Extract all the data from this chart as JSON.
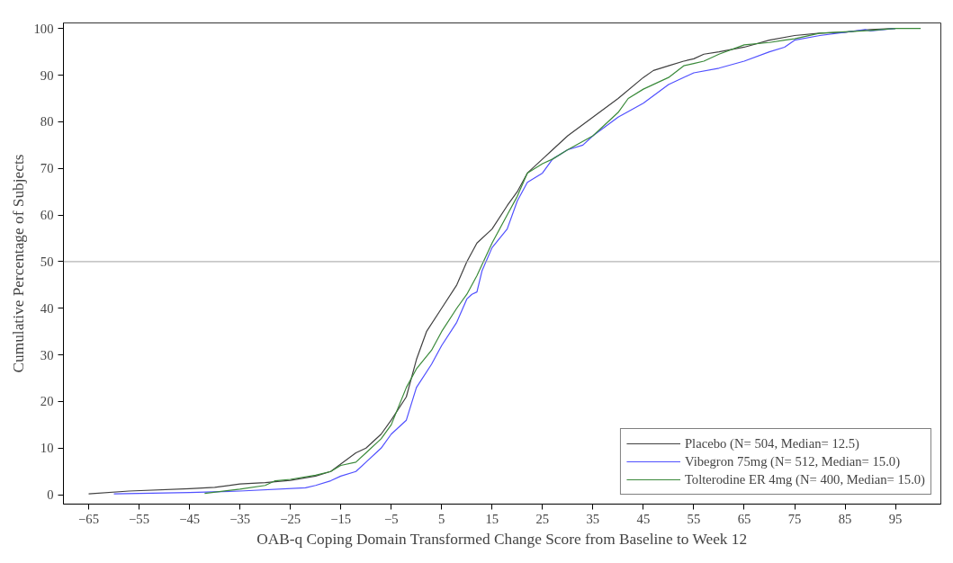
{
  "chart_data": {
    "type": "line",
    "xlabel": "OAB-q Coping Domain Transformed Change Score from Baseline to Week 12",
    "ylabel": "Cumulative Percentage of Subjects",
    "xlim": [
      -70,
      104
    ],
    "ylim": [
      -2,
      101.2
    ],
    "xticks": [
      -65,
      -55,
      -45,
      -35,
      -25,
      -15,
      -5,
      5,
      15,
      25,
      35,
      45,
      55,
      65,
      75,
      85,
      95
    ],
    "yticks": [
      0,
      10,
      20,
      30,
      40,
      50,
      60,
      70,
      80,
      90,
      100
    ],
    "grid": false,
    "legend": "bottom right",
    "line_style": "solid",
    "marker": "none",
    "ref_lines": [
      {
        "axis": "y",
        "value": 50,
        "color": "#a0a0a0"
      }
    ],
    "series": [
      {
        "name": "Placebo (N= 504, Median= 12.5)",
        "color": "#404040",
        "x": [
          -65,
          -57,
          -45,
          -40,
          -35,
          -30,
          -25,
          -20,
          -17,
          -12,
          -10,
          -7,
          -5,
          -2,
          0,
          2,
          5,
          8,
          10,
          12,
          15,
          18,
          20,
          22,
          25,
          27,
          30,
          35,
          40,
          45,
          47,
          50,
          53,
          55,
          57,
          60,
          65,
          70,
          75,
          80,
          85,
          90,
          95
        ],
        "values": [
          0.2,
          0.8,
          1.3,
          1.6,
          2.3,
          2.6,
          3.1,
          4,
          5,
          9,
          10,
          13,
          16,
          21,
          29,
          35,
          40,
          45,
          50,
          54,
          57,
          62,
          65,
          69,
          72,
          74,
          77,
          81,
          85,
          89.5,
          91,
          92,
          93,
          93.5,
          94.5,
          95,
          96,
          97.5,
          98.5,
          99,
          99.2,
          99.8,
          100
        ]
      },
      {
        "name": "Vibegron 75mg (N= 512, Median= 15.0)",
        "color": "#5050ff",
        "x": [
          -60,
          -45,
          -35,
          -22,
          -20,
          -17,
          -15,
          -12,
          -10,
          -7,
          -5,
          -2,
          0,
          3,
          5,
          8,
          10,
          11,
          12,
          13,
          15,
          18,
          20,
          22,
          25,
          27,
          30,
          33,
          35,
          40,
          45,
          50,
          55,
          60,
          65,
          70,
          73,
          75,
          80,
          85,
          89,
          90,
          95
        ],
        "values": [
          0.2,
          0.5,
          0.8,
          1.5,
          2,
          3,
          4,
          5,
          7,
          10,
          13,
          16,
          23,
          28,
          32,
          37,
          42,
          43,
          43.5,
          48,
          53,
          57,
          63,
          67,
          69,
          72,
          74,
          75,
          77,
          81,
          84,
          88,
          90.5,
          91.5,
          93,
          95,
          96,
          97.5,
          98.5,
          99.2,
          99.8,
          99.5,
          100
        ]
      },
      {
        "name": "Tolterodine ER 4mg (N= 400, Median= 15.0)",
        "color": "#3a8a3a",
        "x": [
          -42,
          -35,
          -30,
          -28,
          -25,
          -20,
          -17,
          -15,
          -12,
          -10,
          -7,
          -5,
          -2,
          0,
          3,
          5,
          8,
          10,
          12,
          15,
          18,
          20,
          22,
          25,
          27,
          30,
          35,
          40,
          42,
          45,
          50,
          53,
          55,
          57,
          60,
          65,
          70,
          73,
          75,
          80,
          85,
          90,
          95,
          100
        ],
        "values": [
          0.3,
          1.2,
          2,
          3,
          3.3,
          4.2,
          5,
          6.3,
          7,
          9,
          12,
          15,
          23,
          27,
          31,
          35,
          40,
          43,
          47,
          54,
          60,
          64,
          69,
          71,
          72,
          74,
          77,
          82,
          85,
          87,
          89.5,
          92,
          92.5,
          93,
          94.5,
          96.5,
          97,
          97.5,
          97.8,
          99,
          99.3,
          99.6,
          100,
          100
        ]
      }
    ]
  }
}
